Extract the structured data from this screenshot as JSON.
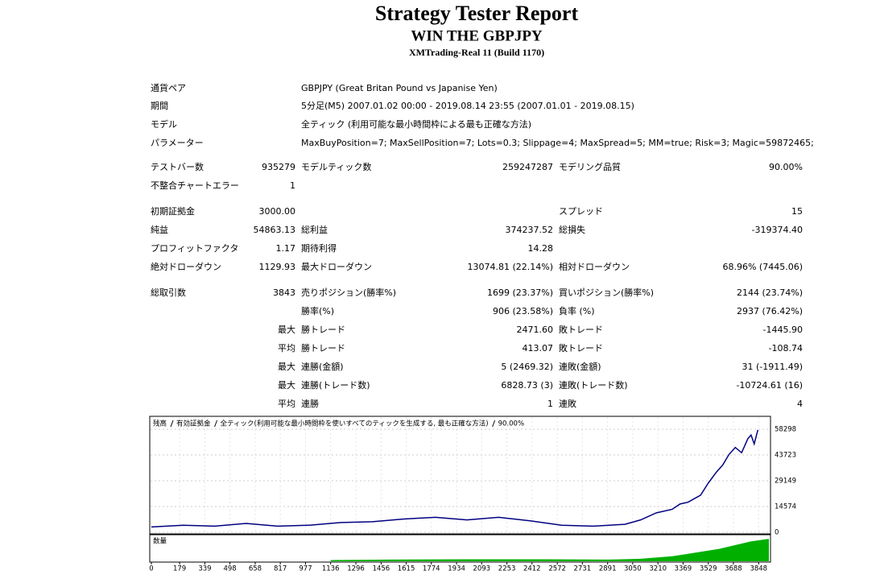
{
  "header": {
    "title": "Strategy Tester Report",
    "subtitle": "WIN THE GBPJPY",
    "server": "XMTrading-Real 11 (Build 1170)"
  },
  "info": [
    [
      "通貨ペア",
      "GBPJPY (Great Britan Pound vs Japanise Yen)"
    ],
    [
      "期間",
      "5分足(M5) 2007.01.02 00:00 - 2019.08.14 23:55 (2007.01.01 - 2019.08.15)"
    ],
    [
      "モデル",
      "全ティック (利用可能な最小時間枠による最も正確な方法)"
    ],
    [
      "パラメーター",
      "MaxBuyPosition=7; MaxSellPosition=7; Lots=0.3; Slippage=4; MaxSpread=5; MM=true; Risk=3; Magic=59872465;"
    ]
  ],
  "stats": [
    [
      "テストバー数",
      "935279",
      "モデルティック数",
      "259247287",
      "モデリング品質",
      "90.00%"
    ],
    [
      "不整合チャートエラー",
      "1"
    ],
    [
      "初期証拠金",
      "3000.00",
      null,
      null,
      "スプレッド",
      "15"
    ],
    [
      "純益",
      "54863.13",
      "総利益",
      "374237.52",
      "総損失",
      "-319374.40"
    ],
    [
      "プロフィットファクタ",
      "1.17",
      "期待利得",
      "14.28"
    ],
    [
      "絶対ドローダウン",
      "1129.93",
      "最大ドローダウン",
      "13074.81 (22.14%)",
      "相対ドローダウン",
      "68.96% (7445.06)"
    ],
    [
      "総取引数",
      "3843",
      "売りポジション(勝率%)",
      "1699 (23.37%)",
      "買いポジション(勝率%)",
      "2144 (23.74%)"
    ],
    [
      null,
      null,
      "勝率(%)",
      "906 (23.58%)",
      "負率 (%)",
      "2937 (76.42%)"
    ],
    [
      null,
      "最大",
      "勝トレード",
      "2471.60",
      "敗トレード",
      "-1445.90"
    ],
    [
      null,
      "平均",
      "勝トレード",
      "413.07",
      "敗トレード",
      "-108.74"
    ],
    [
      null,
      "最大",
      "連勝(金額)",
      "5 (2469.32)",
      "連敗(金額)",
      "31 (-1911.49)"
    ],
    [
      null,
      "最大",
      "連勝(トレード数)",
      "6828.73 (3)",
      "連敗(トレード数)",
      "-10724.61 (16)"
    ],
    [
      null,
      "平均",
      "連勝",
      "1",
      "連敗",
      "4"
    ]
  ],
  "chart_data": {
    "type": "line",
    "legend_note": "全ティック(利用可能な最小時間枠を使いすべてのティックを生成する, 最も正確な方法)",
    "legend_quality": "90.00%",
    "x": [
      0,
      200,
      400,
      600,
      800,
      1000,
      1200,
      1400,
      1600,
      1800,
      2000,
      2200,
      2400,
      2600,
      2800,
      3000,
      3100,
      3200,
      3300,
      3350,
      3400,
      3480,
      3530,
      3580,
      3620,
      3660,
      3700,
      3740,
      3780,
      3800,
      3820,
      3843
    ],
    "series": [
      {
        "name": "残高",
        "color": "#000080",
        "values": [
          3000,
          4000,
          3500,
          5000,
          3500,
          4000,
          5500,
          6000,
          7500,
          8500,
          7000,
          8500,
          6500,
          4000,
          3500,
          4500,
          7000,
          11000,
          13000,
          16000,
          17000,
          21000,
          28000,
          34000,
          38000,
          44000,
          48000,
          45000,
          53000,
          55000,
          50000,
          57863
        ]
      },
      {
        "name": "有効証拠金",
        "color": "#00a000"
      }
    ],
    "xlim": [
      0,
      3913
    ],
    "xticks": [
      0,
      179,
      339,
      498,
      658,
      817,
      977,
      1136,
      1296,
      1456,
      1615,
      1774,
      1934,
      2093,
      2253,
      2412,
      2572,
      2731,
      2891,
      3050,
      3210,
      3369,
      3529,
      3688,
      3848
    ],
    "ylim": [
      0,
      58298
    ],
    "yticks": [
      0,
      14574,
      29149,
      43723,
      58298
    ],
    "grid": true,
    "volume": {
      "name": "数量",
      "color": "#00b000",
      "x": [
        1136,
        1500,
        2000,
        2500,
        2900,
        3100,
        3300,
        3400,
        3500,
        3600,
        3700,
        3800,
        3913
      ],
      "values": [
        0.5,
        0.7,
        0.8,
        0.8,
        0.7,
        1,
        2,
        3,
        4,
        5,
        6.5,
        8,
        9
      ],
      "ylim": [
        0,
        10
      ]
    }
  }
}
